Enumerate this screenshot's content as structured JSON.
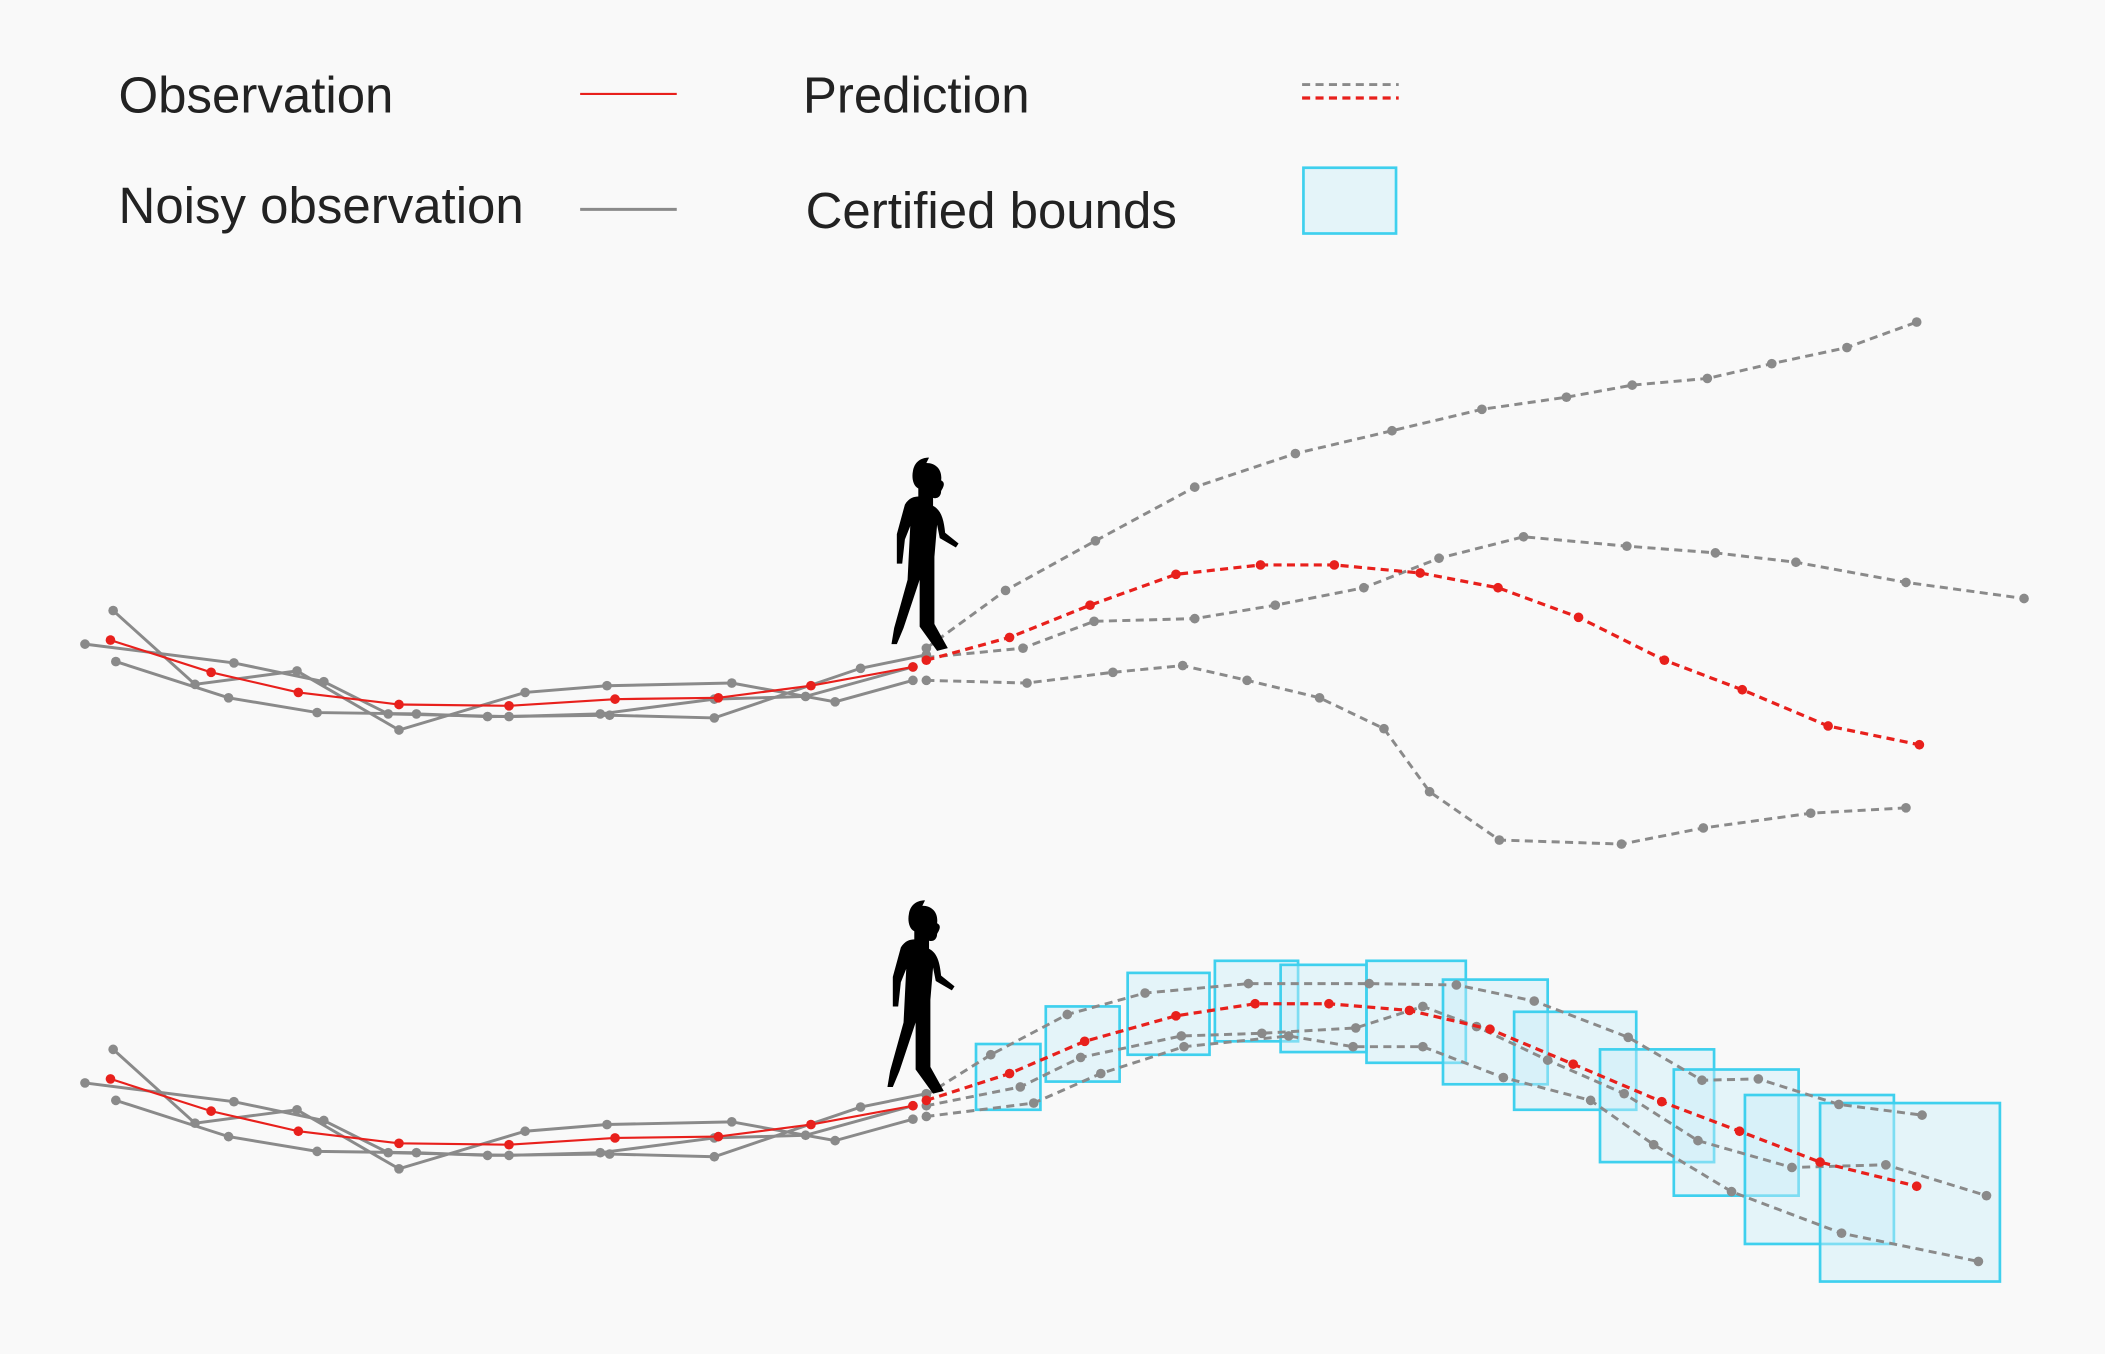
{
  "legend": {
    "items": [
      {
        "label": "Observation"
      },
      {
        "label": "Prediction"
      },
      {
        "label": "Noisy observation"
      },
      {
        "label": "Certified bounds"
      }
    ]
  }
}
